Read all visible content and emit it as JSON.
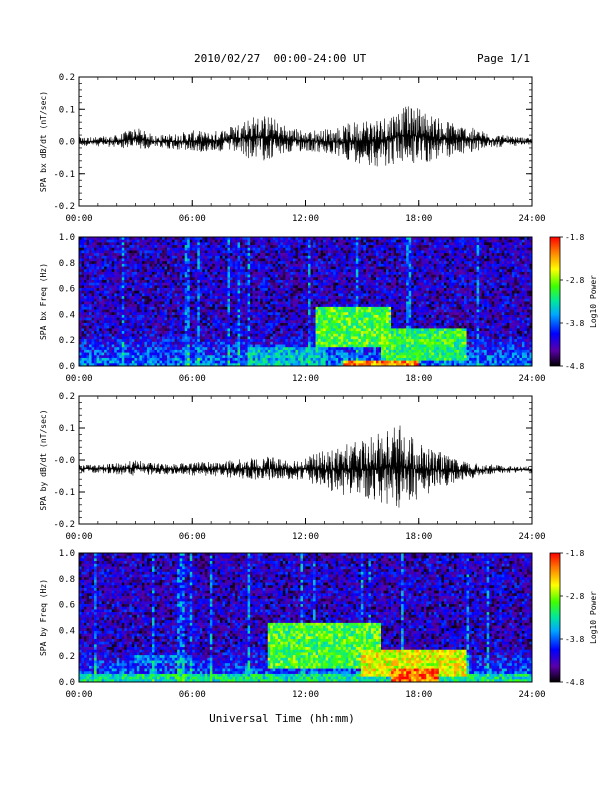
{
  "header": {
    "title": "2010/02/27  00:00-24:00 UT",
    "page": "Page 1/1"
  },
  "footer": {
    "xlabel": "Universal Time (hh:mm)"
  },
  "colors": {
    "spectrogram_scale": [
      "#000000",
      "#5a00a8",
      "#0000ff",
      "#00a8ff",
      "#00e6a0",
      "#40ff00",
      "#ffff00",
      "#ff8000",
      "#ff0000"
    ]
  },
  "chart_data": [
    {
      "type": "line",
      "id": "bx_dbdt",
      "ylabel": "SPA bx dB/dt (nT/sec)",
      "ylim": [
        -0.2,
        0.2
      ],
      "yticks": [
        {
          "value": 0.2,
          "label": "0.2"
        },
        {
          "value": 0.1,
          "label": "0.1"
        },
        {
          "value": 0.0,
          "label": "0.0"
        },
        {
          "value": -0.1,
          "label": "-0.1"
        },
        {
          "value": -0.2,
          "label": "-0.2"
        }
      ],
      "xlim": [
        0,
        24
      ],
      "xticks": [
        {
          "value": 0,
          "label": "00:00"
        },
        {
          "value": 6,
          "label": "06:00"
        },
        {
          "value": 12,
          "label": "12:00"
        },
        {
          "value": 18,
          "label": "18:00"
        },
        {
          "value": 24,
          "label": "24:00"
        }
      ],
      "x_unit": "hours UT",
      "envelope": {
        "hours": [
          0,
          1,
          2,
          3,
          4,
          5,
          6,
          7,
          8,
          9,
          10,
          11,
          12,
          13,
          14,
          15,
          16,
          17,
          18,
          19,
          20,
          21,
          22,
          23,
          24
        ],
        "max": [
          0.015,
          0.015,
          0.02,
          0.045,
          0.02,
          0.025,
          0.035,
          0.03,
          0.05,
          0.08,
          0.085,
          0.05,
          0.035,
          0.04,
          0.05,
          0.075,
          0.08,
          0.11,
          0.11,
          0.075,
          0.06,
          0.04,
          0.025,
          0.015,
          0.01
        ],
        "min": [
          -0.015,
          -0.015,
          -0.02,
          -0.025,
          -0.02,
          -0.025,
          -0.035,
          -0.03,
          -0.035,
          -0.055,
          -0.06,
          -0.04,
          -0.03,
          -0.04,
          -0.055,
          -0.07,
          -0.08,
          -0.07,
          -0.075,
          -0.06,
          -0.045,
          -0.03,
          -0.02,
          -0.015,
          -0.01
        ]
      }
    },
    {
      "type": "heatmap",
      "id": "bx_freq",
      "ylabel": "SPA bx Freq (Hz)",
      "ylim": [
        0.0,
        1.0
      ],
      "yticks": [
        {
          "value": 1.0,
          "label": "1.0"
        },
        {
          "value": 0.8,
          "label": "0.8"
        },
        {
          "value": 0.6,
          "label": "0.6"
        },
        {
          "value": 0.4,
          "label": "0.4"
        },
        {
          "value": 0.2,
          "label": "0.2"
        },
        {
          "value": 0.0,
          "label": "0.0"
        }
      ],
      "xlim": [
        0,
        24
      ],
      "xticks": [
        {
          "value": 0,
          "label": "00:00"
        },
        {
          "value": 6,
          "label": "06:00"
        },
        {
          "value": 12,
          "label": "12:00"
        },
        {
          "value": 18,
          "label": "18:00"
        },
        {
          "value": 24,
          "label": "24:00"
        }
      ],
      "colorbar": {
        "label": "Log10 Power",
        "range": [
          -4.8,
          -1.8
        ],
        "ticks": [
          {
            "value": -1.8,
            "label": "-1.8"
          },
          {
            "value": -2.8,
            "label": "-2.8"
          },
          {
            "value": -3.8,
            "label": "-3.8"
          },
          {
            "value": -4.8,
            "label": "-4.8"
          }
        ]
      },
      "activity": [
        {
          "hours": [
            12.5,
            16.5
          ],
          "freq_hz": [
            0.15,
            0.45
          ],
          "log_power": -3.0
        },
        {
          "hours": [
            16.0,
            20.5
          ],
          "freq_hz": [
            0.05,
            0.3
          ],
          "log_power": -3.1
        },
        {
          "hours": [
            14.0,
            18.0
          ],
          "freq_hz": [
            0.0,
            0.05
          ],
          "log_power": -2.2
        },
        {
          "hours": [
            9.0,
            13.0
          ],
          "freq_hz": [
            0.0,
            0.15
          ],
          "log_power": -3.5
        }
      ]
    },
    {
      "type": "line",
      "id": "by_dbdt",
      "ylabel": "SPA by dB/dt (nT/sec)",
      "ylim": [
        -0.2,
        0.2
      ],
      "yticks": [
        {
          "value": 0.2,
          "label": "0.2"
        },
        {
          "value": 0.1,
          "label": "0.1"
        },
        {
          "value": 0.0,
          "label": "-0.0"
        },
        {
          "value": -0.1,
          "label": "-0.1"
        },
        {
          "value": -0.2,
          "label": "-0.2"
        }
      ],
      "xlim": [
        0,
        24
      ],
      "xticks": [
        {
          "value": 0,
          "label": "00:00"
        },
        {
          "value": 6,
          "label": "06:00"
        },
        {
          "value": 12,
          "label": "12:00"
        },
        {
          "value": 18,
          "label": "18:00"
        },
        {
          "value": 24,
          "label": "24:00"
        }
      ],
      "x_unit": "hours UT",
      "envelope": {
        "hours": [
          0,
          1,
          2,
          3,
          4,
          5,
          6,
          7,
          8,
          9,
          10,
          11,
          12,
          13,
          14,
          15,
          16,
          17,
          18,
          19,
          20,
          21,
          22,
          23,
          24
        ],
        "max": [
          -0.015,
          -0.015,
          -0.01,
          0.0,
          -0.01,
          -0.01,
          -0.005,
          -0.005,
          0.0,
          0.005,
          0.01,
          0.005,
          0.01,
          0.03,
          0.05,
          0.06,
          0.09,
          0.11,
          0.06,
          0.03,
          0.0,
          -0.01,
          -0.015,
          -0.02,
          -0.02
        ],
        "min": [
          -0.04,
          -0.04,
          -0.045,
          -0.05,
          -0.045,
          -0.045,
          -0.05,
          -0.05,
          -0.055,
          -0.06,
          -0.065,
          -0.06,
          -0.065,
          -0.09,
          -0.11,
          -0.12,
          -0.14,
          -0.15,
          -0.12,
          -0.09,
          -0.07,
          -0.055,
          -0.045,
          -0.04,
          -0.04
        ]
      }
    },
    {
      "type": "heatmap",
      "id": "by_freq",
      "ylabel": "SPA by Freq (Hz)",
      "ylim": [
        0.0,
        1.0
      ],
      "yticks": [
        {
          "value": 1.0,
          "label": "1.0"
        },
        {
          "value": 0.8,
          "label": "0.8"
        },
        {
          "value": 0.6,
          "label": "0.6"
        },
        {
          "value": 0.4,
          "label": "0.4"
        },
        {
          "value": 0.2,
          "label": "0.2"
        },
        {
          "value": 0.0,
          "label": "0.0"
        }
      ],
      "xlim": [
        0,
        24
      ],
      "xticks": [
        {
          "value": 0,
          "label": "00:00"
        },
        {
          "value": 6,
          "label": "06:00"
        },
        {
          "value": 12,
          "label": "12:00"
        },
        {
          "value": 18,
          "label": "18:00"
        },
        {
          "value": 24,
          "label": "24:00"
        }
      ],
      "colorbar": {
        "label": "Log10 Power",
        "range": [
          -4.8,
          -1.8
        ],
        "ticks": [
          {
            "value": -1.8,
            "label": "-1.8"
          },
          {
            "value": -2.8,
            "label": "-2.8"
          },
          {
            "value": -3.8,
            "label": "-3.8"
          },
          {
            "value": -4.8,
            "label": "-4.8"
          }
        ]
      },
      "activity": [
        {
          "hours": [
            10.0,
            16.0
          ],
          "freq_hz": [
            0.1,
            0.45
          ],
          "log_power": -3.0
        },
        {
          "hours": [
            15.0,
            20.5
          ],
          "freq_hz": [
            0.05,
            0.25
          ],
          "log_power": -2.6
        },
        {
          "hours": [
            16.5,
            19.0
          ],
          "freq_hz": [
            0.0,
            0.1
          ],
          "log_power": -2.1
        },
        {
          "hours": [
            3.0,
            6.0
          ],
          "freq_hz": [
            0.15,
            0.2
          ],
          "log_power": -3.7
        },
        {
          "hours": [
            0.0,
            24.0
          ],
          "freq_hz": [
            0.0,
            0.06
          ],
          "log_power": -3.3
        }
      ]
    }
  ]
}
